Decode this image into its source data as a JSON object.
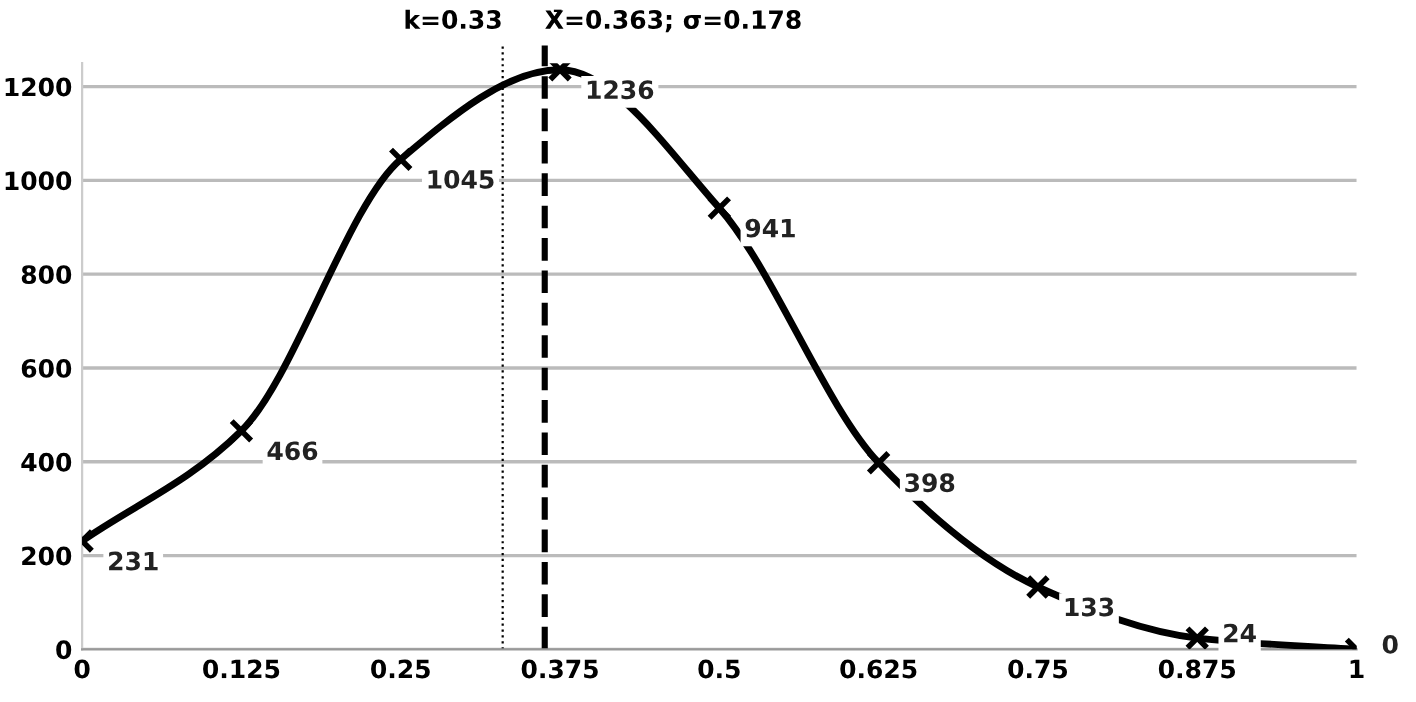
{
  "chart_data": {
    "type": "line",
    "x": [
      0,
      0.125,
      0.25,
      0.375,
      0.5,
      0.625,
      0.75,
      0.875,
      1
    ],
    "series": [
      {
        "color": "#000000",
        "values": [
          231,
          466,
          1045,
          1236,
          941,
          398,
          133,
          24,
          0
        ]
      }
    ],
    "xlim": [
      0,
      1
    ],
    "xticks": [
      0,
      0.125,
      0.25,
      0.375,
      0.5,
      0.625,
      0.75,
      0.875,
      1
    ],
    "ylim": [
      0,
      1250
    ],
    "yticks": [
      0,
      200,
      400,
      600,
      800,
      1000,
      1200
    ],
    "grid": "y",
    "marker": "cross",
    "line_style": "solid",
    "data_labels": true,
    "ref_lines": [
      {
        "axis": "x",
        "value": 0.33,
        "label": "k=0.33",
        "line_style": "dotted",
        "color": "#000000"
      },
      {
        "axis": "x",
        "value": 0.363,
        "label": "X̄=0.363; σ=0.178",
        "line_style": "dashed",
        "color": "#000000"
      }
    ]
  }
}
